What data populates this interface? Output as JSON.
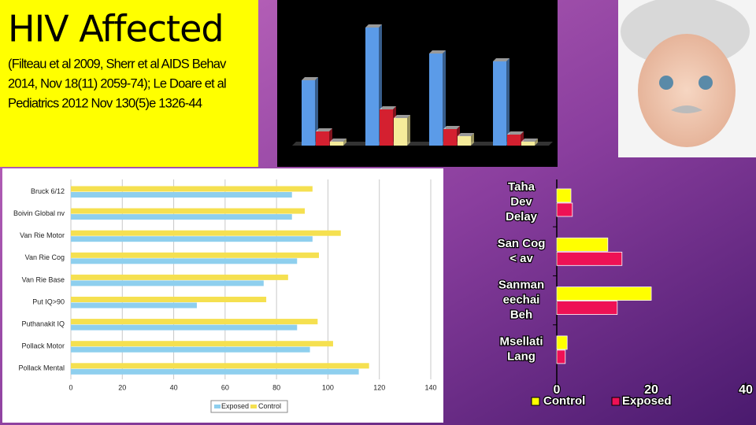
{
  "title": "HIV Affected",
  "subtitle": [
    "(Filteau et al 2009, Sherr et al AIDS Behav",
    "2014, Nov 18(11) 2059-74); Le Doare et al",
    "Pediatrics 2012 Nov 130(5)e 1326-44"
  ],
  "chart_data": [
    {
      "type": "bar",
      "categories": [
        null,
        null,
        null,
        null
      ],
      "series": [
        {
          "color": "#5b9be8",
          "values": [
            83,
            150,
            117,
            107
          ]
        },
        {
          "color": "#d42030",
          "values": [
            18,
            46,
            21,
            14
          ]
        },
        {
          "color": "#f5eb9a",
          "values": [
            5,
            35,
            12,
            5
          ]
        }
      ],
      "ylim": [
        0,
        175
      ]
    },
    {
      "type": "hbar",
      "categories": [
        "Bruck 6/12",
        "Boivin Global nv",
        "Van Rie Motor",
        "Van Rie Cog",
        "Van Rie Base",
        "Put IQ>90",
        "Puthanakit IQ",
        "Pollack Motor",
        "Pollack Mental"
      ],
      "series": [
        {
          "name": "Exposed",
          "color": "#8ecfee",
          "values": [
            86,
            86,
            94,
            88,
            75,
            49,
            88,
            93,
            112
          ]
        },
        {
          "name": "Control",
          "color": "#f5e050",
          "values": [
            94,
            91,
            105,
            96.5,
            84.5,
            76,
            96,
            102,
            116
          ]
        }
      ],
      "xlim": [
        0,
        140
      ],
      "xticks": [
        0,
        20,
        40,
        60,
        80,
        100,
        120,
        140
      ],
      "grid": true,
      "legend": "bottom"
    },
    {
      "type": "hbar",
      "categories": [
        [
          "Taha",
          "Dev",
          "Delay"
        ],
        [
          "San Cog",
          "< av"
        ],
        [
          "Sanman",
          "eechai",
          "Beh"
        ],
        [
          "Msellati",
          "Lang"
        ]
      ],
      "series": [
        {
          "name": "Control",
          "color": "#ffff00",
          "values": [
            3,
            10.8,
            20,
            2.2
          ]
        },
        {
          "name": "Exposed",
          "color": "#ee1155",
          "values": [
            3.3,
            13.8,
            12.8,
            1.8
          ]
        }
      ],
      "xlim": [
        0,
        40
      ],
      "xticks": [
        0,
        20,
        40
      ],
      "grid": false,
      "legend": "bottom"
    }
  ]
}
